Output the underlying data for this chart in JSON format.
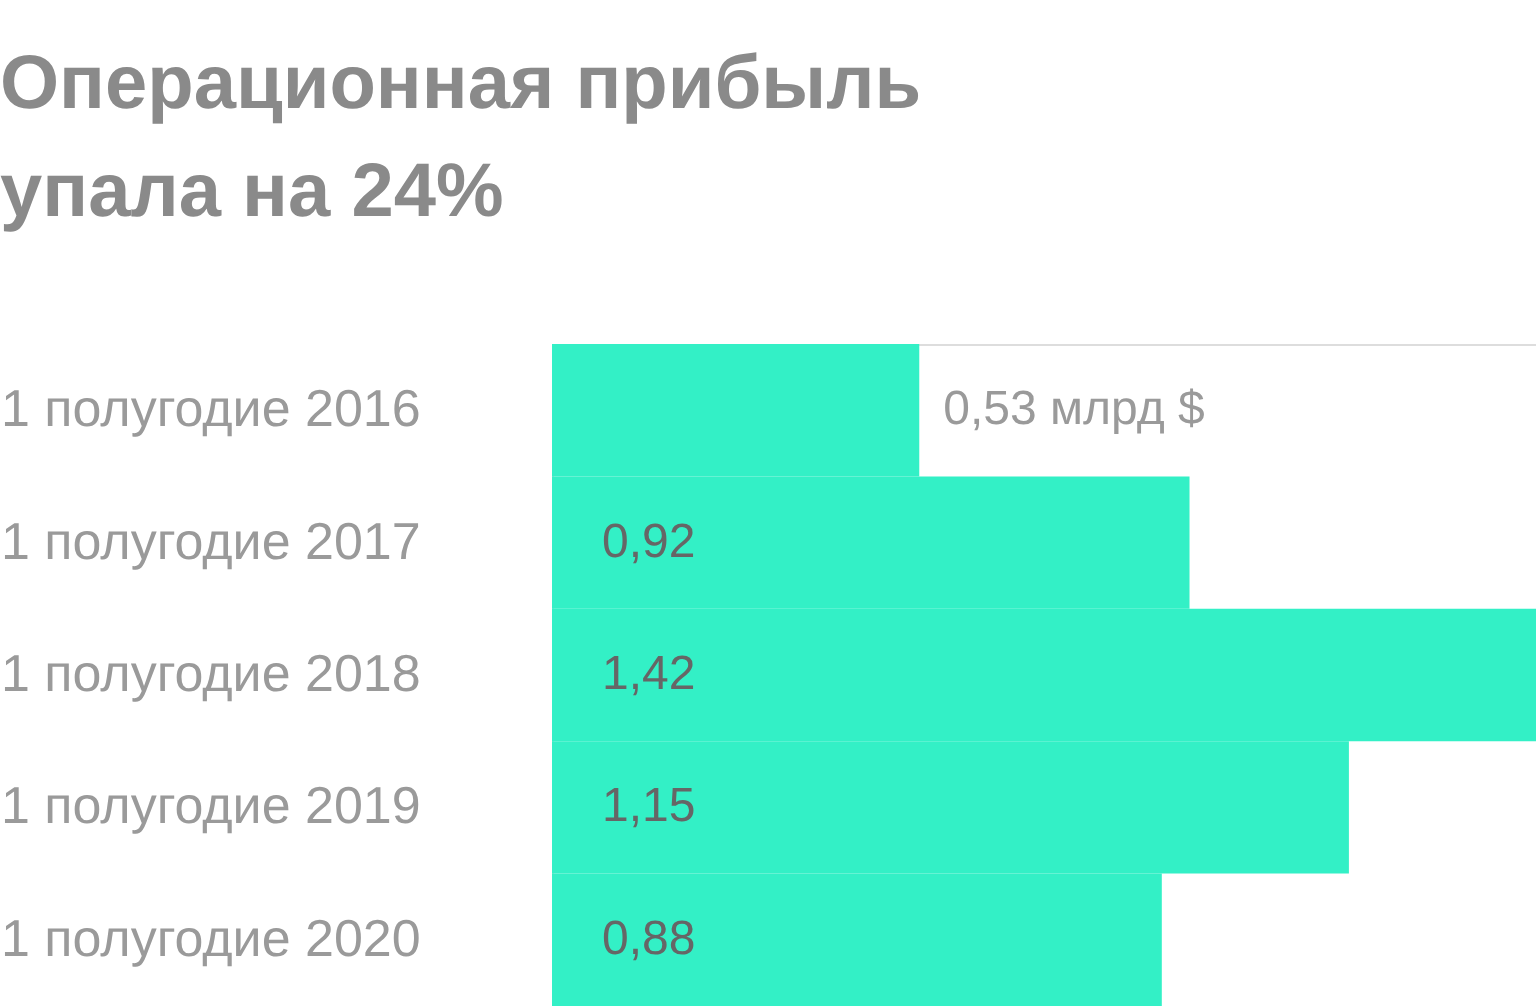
{
  "chart_data": {
    "type": "bar",
    "orientation": "horizontal",
    "title": "Операционная прибыль упала на 24%",
    "categories": [
      "1 полугодие 2016",
      "1 полугодие 2017",
      "1 полугодие 2018",
      "1 полугодие 2019",
      "1 полугодие 2020"
    ],
    "values": [
      0.53,
      0.92,
      1.42,
      1.15,
      0.88
    ],
    "value_labels": [
      "0,53 млрд $",
      "0,92",
      "1,42",
      "1,15",
      "0,88"
    ],
    "color": "#33f0c6",
    "grid": false
  }
}
